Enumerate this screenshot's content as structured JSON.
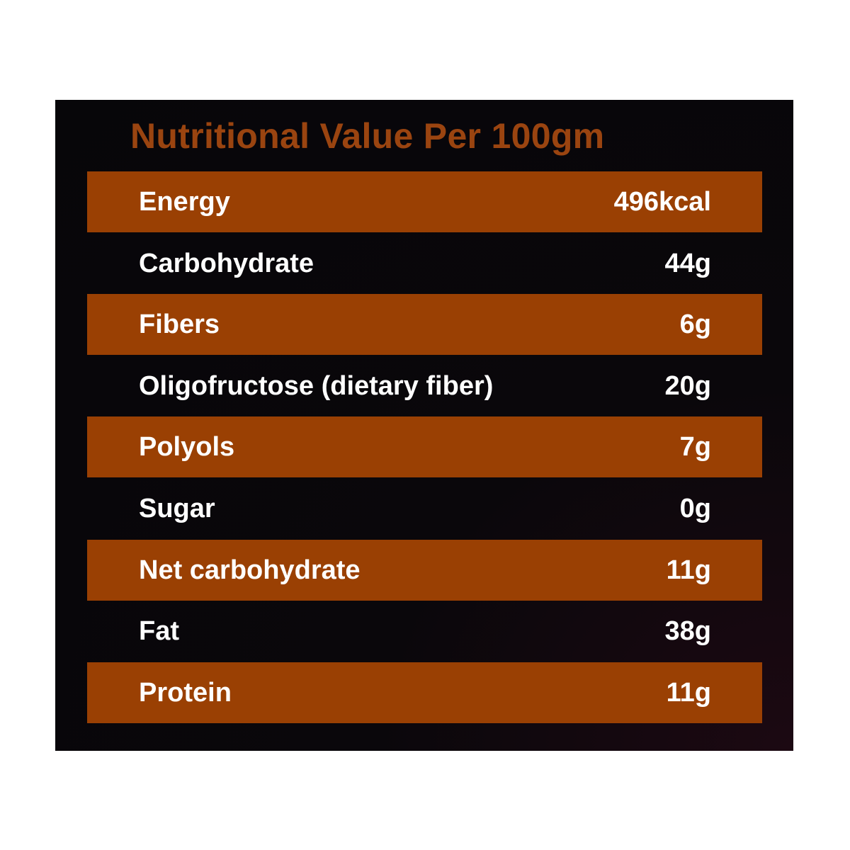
{
  "title": "Nutritional Value Per 100gm",
  "colors": {
    "title": "#9a4410",
    "band": "#9a4003",
    "panel": "#08070a",
    "text": "#ffffff"
  },
  "rows": [
    {
      "label": "Energy",
      "value": "496kcal",
      "shaded": true
    },
    {
      "label": "Carbohydrate",
      "value": "44g",
      "shaded": false
    },
    {
      "label": "Fibers",
      "value": "6g",
      "shaded": true
    },
    {
      "label": "Oligofructose (dietary fiber)",
      "value": "20g",
      "shaded": false
    },
    {
      "label": "Polyols",
      "value": "7g",
      "shaded": true
    },
    {
      "label": "Sugar",
      "value": "0g",
      "shaded": false
    },
    {
      "label": "Net carbohydrate",
      "value": "11g",
      "shaded": true
    },
    {
      "label": "Fat",
      "value": "38g",
      "shaded": false
    },
    {
      "label": "Protein",
      "value": "11g",
      "shaded": true
    }
  ]
}
